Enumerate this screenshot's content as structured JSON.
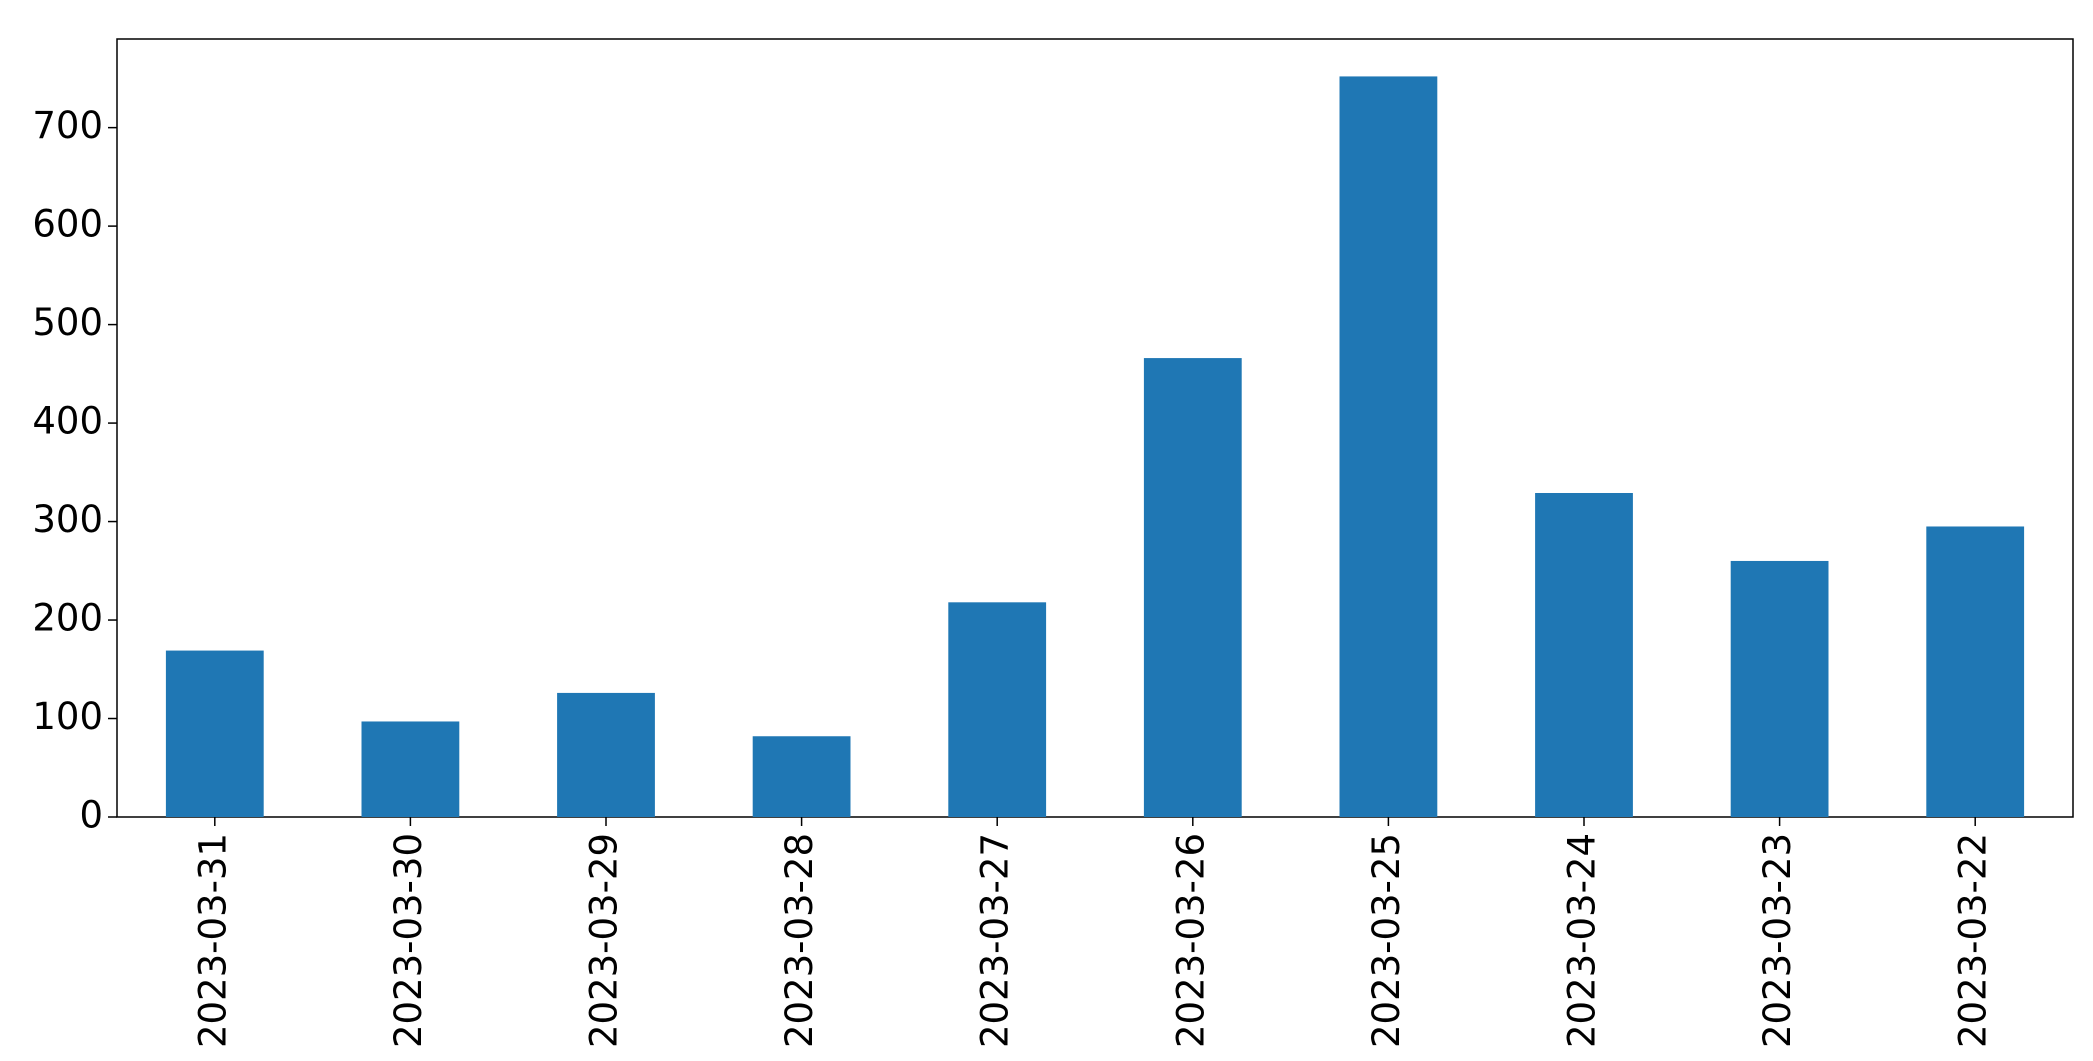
{
  "chart_data": {
    "type": "bar",
    "categories": [
      "2023-03-31",
      "2023-03-30",
      "2023-03-29",
      "2023-03-28",
      "2023-03-27",
      "2023-03-26",
      "2023-03-25",
      "2023-03-24",
      "2023-03-23",
      "2023-03-22"
    ],
    "values": [
      169,
      97,
      126,
      82,
      218,
      466,
      752,
      329,
      260,
      295
    ],
    "color": "#1f77b4",
    "ylim": [
      0,
      790
    ],
    "yticks": [
      0,
      100,
      200,
      300,
      400,
      500,
      600,
      700
    ],
    "grid": false
  }
}
